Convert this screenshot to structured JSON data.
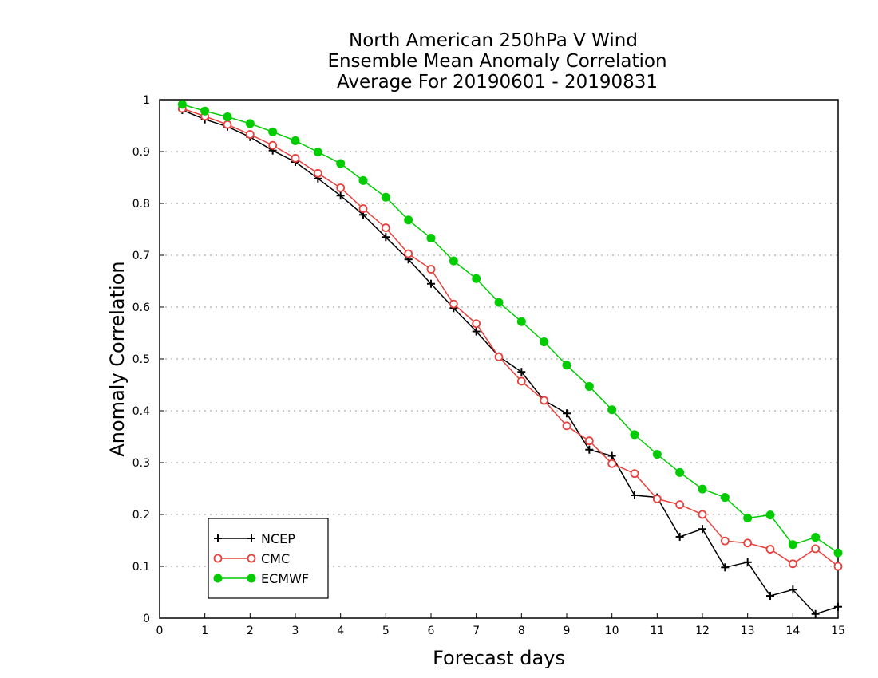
{
  "chart_data": {
    "type": "line",
    "title": [
      "North American 250hPa V Wind",
      "Ensemble Mean Anomaly Correlation",
      "Average For 20190601 - 20190831"
    ],
    "xlabel": "Forecast days",
    "ylabel": "Anomaly Correlation",
    "xlim": [
      0,
      15
    ],
    "ylim": [
      0,
      1
    ],
    "x_ticks": [
      "0",
      "1",
      "2",
      "3",
      "4",
      "5",
      "6",
      "7",
      "8",
      "9",
      "10",
      "11",
      "12",
      "13",
      "14",
      "15"
    ],
    "y_ticks": [
      "0",
      "0.1",
      "0.2",
      "0.3",
      "0.4",
      "0.5",
      "0.6",
      "0.7",
      "0.8",
      "0.9",
      "1"
    ],
    "grid": "dotted horizontal",
    "legend_position": "bottom-left",
    "x": [
      0.5,
      1,
      1.5,
      2,
      2.5,
      3,
      3.5,
      4,
      4.5,
      5,
      5.5,
      6,
      6.5,
      7,
      7.5,
      8,
      8.5,
      9,
      9.5,
      10,
      10.5,
      11,
      11.5,
      12,
      12.5,
      13,
      13.5,
      14,
      14.5,
      15
    ],
    "series": [
      {
        "name": "NCEP",
        "color": "#000000",
        "marker": "plus",
        "values": [
          0.98,
          0.962,
          0.948,
          0.928,
          0.902,
          0.88,
          0.848,
          0.815,
          0.778,
          0.735,
          0.692,
          0.645,
          0.598,
          0.553,
          0.505,
          0.475,
          0.42,
          0.395,
          0.325,
          0.313,
          0.237,
          0.233,
          0.157,
          0.172,
          0.098,
          0.108,
          0.043,
          0.055,
          0.008,
          0.022
        ]
      },
      {
        "name": "CMC",
        "color": "#e8403c",
        "marker": "open-circle",
        "values": [
          0.983,
          0.968,
          0.952,
          0.933,
          0.912,
          0.887,
          0.858,
          0.83,
          0.79,
          0.753,
          0.703,
          0.673,
          0.606,
          0.568,
          0.504,
          0.457,
          0.42,
          0.371,
          0.342,
          0.298,
          0.279,
          0.23,
          0.219,
          0.2,
          0.149,
          0.145,
          0.133,
          0.105,
          0.134,
          0.1
        ]
      },
      {
        "name": "ECMWF",
        "color": "#00cc00",
        "marker": "filled-circle",
        "values": [
          0.991,
          0.978,
          0.967,
          0.954,
          0.938,
          0.921,
          0.899,
          0.877,
          0.844,
          0.812,
          0.768,
          0.733,
          0.689,
          0.655,
          0.609,
          0.572,
          0.533,
          0.488,
          0.447,
          0.402,
          0.354,
          0.316,
          0.281,
          0.249,
          0.233,
          0.193,
          0.199,
          0.142,
          0.156,
          0.126
        ]
      }
    ]
  }
}
